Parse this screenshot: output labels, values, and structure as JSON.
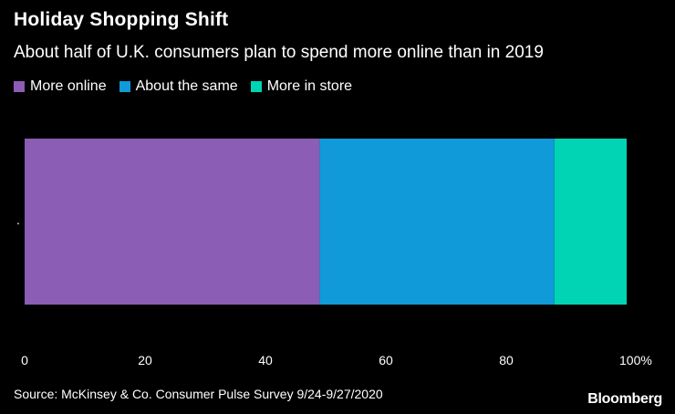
{
  "title": "Holiday Shopping Shift",
  "subtitle": "About half of U.K. consumers plan to spend more online than in 2019",
  "source": "Source: McKinsey & Co. Consumer Pulse Survey 9/24-9/27/2020",
  "logo": "Bloomberg",
  "colors": {
    "background": "#000000",
    "more_online": "#8b5db5",
    "about_same": "#109ad9",
    "more_in_store": "#00d4b4"
  },
  "chart_data": {
    "type": "bar",
    "orientation": "horizontal",
    "stacked": true,
    "categories": [
      "."
    ],
    "series": [
      {
        "name": "More online",
        "values": [
          49
        ],
        "color": "#8b5db5"
      },
      {
        "name": "About the same",
        "values": [
          39
        ],
        "color": "#109ad9"
      },
      {
        "name": "More in store",
        "values": [
          12
        ],
        "color": "#00d4b4"
      }
    ],
    "xlim": [
      0,
      100
    ],
    "xticks": [
      0,
      20,
      40,
      60,
      80,
      100
    ],
    "xtick_labels": [
      "0",
      "20",
      "40",
      "60",
      "80",
      "100%"
    ],
    "legend": "top-left",
    "grid": false
  }
}
